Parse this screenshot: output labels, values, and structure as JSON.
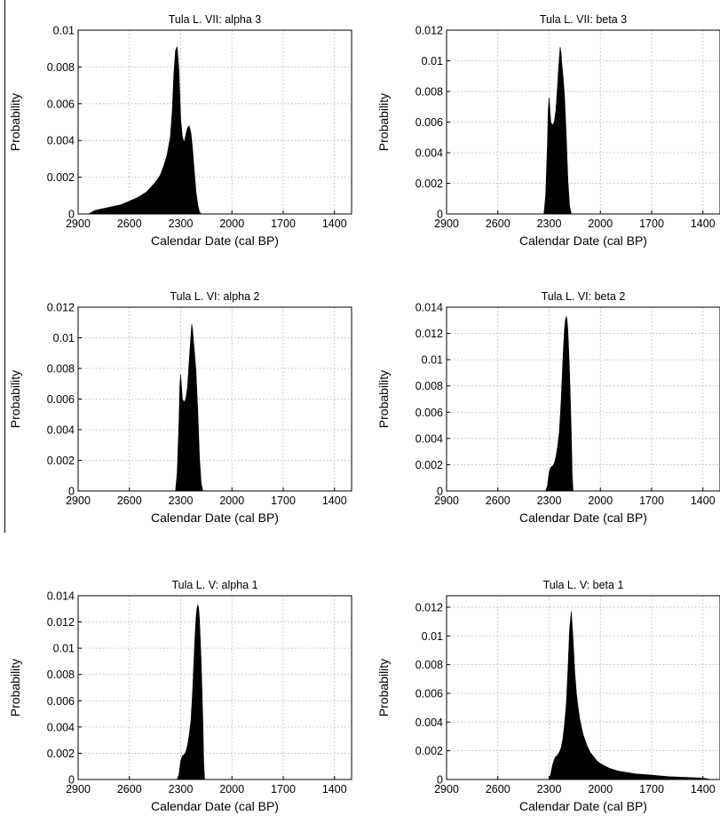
{
  "figure": {
    "ink_color": "#000000",
    "grid_color": "#aaaaaa",
    "background": "#ffffff"
  },
  "chart_data": [
    {
      "type": "area",
      "title": "Tula L. VII: alpha 3",
      "xlabel": "Calendar Date (cal BP)",
      "ylabel": "Probability",
      "xlim": [
        2900,
        1300
      ],
      "x_reversed": true,
      "ylim": [
        0,
        0.01
      ],
      "xticks": [
        2900,
        2600,
        2300,
        2000,
        1700,
        1400
      ],
      "xtick_labels": [
        "2900",
        "2600",
        "2300",
        "2000",
        "1700",
        "1400"
      ],
      "yticks": [
        0,
        0.002,
        0.004,
        0.006,
        0.008,
        0.01
      ],
      "ytick_labels": [
        "0",
        "0.002",
        "0.004",
        "0.006",
        "0.008",
        "0.01"
      ],
      "grid": true,
      "x": [
        2840,
        2800,
        2750,
        2700,
        2650,
        2600,
        2550,
        2500,
        2450,
        2420,
        2400,
        2380,
        2360,
        2350,
        2340,
        2330,
        2320,
        2310,
        2300,
        2290,
        2280,
        2270,
        2260,
        2250,
        2240,
        2230,
        2220,
        2210,
        2200,
        2190,
        2180
      ],
      "y": [
        0,
        0.0002,
        0.0003,
        0.0004,
        0.0005,
        0.0007,
        0.0009,
        0.0012,
        0.0017,
        0.0021,
        0.0026,
        0.0032,
        0.0042,
        0.0055,
        0.0076,
        0.0089,
        0.0091,
        0.0078,
        0.0052,
        0.0042,
        0.0039,
        0.0043,
        0.0047,
        0.0048,
        0.0044,
        0.0035,
        0.0023,
        0.0012,
        0.0005,
        0.0001,
        0
      ]
    },
    {
      "type": "area",
      "title": "Tula L. VII: beta 3",
      "xlabel": "Calendar Date (cal BP)",
      "ylabel": "Probability",
      "xlim": [
        2900,
        1300
      ],
      "x_reversed": true,
      "ylim": [
        0,
        0.012
      ],
      "xticks": [
        2900,
        2600,
        2300,
        2000,
        1700,
        1400
      ],
      "xtick_labels": [
        "2900",
        "2600",
        "2300",
        "2000",
        "1700",
        "1400"
      ],
      "yticks": [
        0,
        0.002,
        0.004,
        0.006,
        0.008,
        0.01,
        0.012
      ],
      "ytick_labels": [
        "0",
        "0.002",
        "0.004",
        "0.006",
        "0.008",
        "0.01",
        "0.012"
      ],
      "grid": true,
      "x": [
        2330,
        2320,
        2310,
        2305,
        2300,
        2295,
        2290,
        2280,
        2270,
        2260,
        2250,
        2240,
        2235,
        2230,
        2225,
        2220,
        2210,
        2200,
        2190,
        2180,
        2170
      ],
      "y": [
        0,
        0.0012,
        0.0045,
        0.0068,
        0.0076,
        0.0068,
        0.006,
        0.0058,
        0.006,
        0.0068,
        0.0085,
        0.0102,
        0.0109,
        0.0105,
        0.0098,
        0.0092,
        0.0078,
        0.0052,
        0.0022,
        0.0005,
        0
      ]
    },
    {
      "type": "area",
      "title": "Tula L. VI: alpha 2",
      "xlabel": "Calendar Date (cal BP)",
      "ylabel": "Probability",
      "xlim": [
        2900,
        1300
      ],
      "x_reversed": true,
      "ylim": [
        0,
        0.012
      ],
      "xticks": [
        2900,
        2600,
        2300,
        2000,
        1700,
        1400
      ],
      "xtick_labels": [
        "2900",
        "2600",
        "2300",
        "2000",
        "1700",
        "1400"
      ],
      "yticks": [
        0,
        0.002,
        0.004,
        0.006,
        0.008,
        0.01,
        0.012
      ],
      "ytick_labels": [
        "0",
        "0.002",
        "0.004",
        "0.006",
        "0.008",
        "0.01",
        "0.012"
      ],
      "grid": true,
      "x": [
        2330,
        2320,
        2310,
        2305,
        2300,
        2295,
        2290,
        2280,
        2270,
        2260,
        2250,
        2240,
        2235,
        2230,
        2225,
        2220,
        2210,
        2200,
        2190,
        2180,
        2170
      ],
      "y": [
        0,
        0.0012,
        0.0045,
        0.0068,
        0.0076,
        0.0068,
        0.006,
        0.0058,
        0.006,
        0.0068,
        0.0085,
        0.0102,
        0.0109,
        0.0105,
        0.0098,
        0.0092,
        0.0078,
        0.0052,
        0.0022,
        0.0005,
        0
      ]
    },
    {
      "type": "area",
      "title": "Tula L. VI: beta 2",
      "xlabel": "Calendar Date (cal BP)",
      "ylabel": "Probability",
      "xlim": [
        2900,
        1300
      ],
      "x_reversed": true,
      "ylim": [
        0,
        0.014
      ],
      "xticks": [
        2900,
        2600,
        2300,
        2000,
        1700,
        1400
      ],
      "xtick_labels": [
        "2900",
        "2600",
        "2300",
        "2000",
        "1700",
        "1400"
      ],
      "yticks": [
        0,
        0.002,
        0.004,
        0.006,
        0.008,
        0.01,
        0.012,
        0.014
      ],
      "ytick_labels": [
        "0",
        "0.002",
        "0.004",
        "0.006",
        "0.008",
        "0.01",
        "0.012",
        "0.014"
      ],
      "grid": true,
      "x": [
        2320,
        2310,
        2300,
        2290,
        2280,
        2270,
        2260,
        2250,
        2240,
        2230,
        2220,
        2215,
        2210,
        2205,
        2200,
        2195,
        2190,
        2180,
        2170,
        2165,
        2160
      ],
      "y": [
        0,
        0.0004,
        0.0014,
        0.0018,
        0.0019,
        0.0021,
        0.0026,
        0.0034,
        0.0045,
        0.0068,
        0.0098,
        0.0112,
        0.0123,
        0.013,
        0.0133,
        0.0131,
        0.0122,
        0.009,
        0.0045,
        0.0012,
        0
      ]
    },
    {
      "type": "area",
      "title": "Tula L. V: alpha 1",
      "xlabel": "Calendar Date (cal BP)",
      "ylabel": "Probability",
      "xlim": [
        2900,
        1300
      ],
      "x_reversed": true,
      "ylim": [
        0,
        0.014
      ],
      "xticks": [
        2900,
        2600,
        2300,
        2000,
        1700,
        1400
      ],
      "xtick_labels": [
        "2900",
        "2600",
        "2300",
        "2000",
        "1700",
        "1400"
      ],
      "yticks": [
        0,
        0.002,
        0.004,
        0.006,
        0.008,
        0.01,
        0.012,
        0.014
      ],
      "ytick_labels": [
        "0",
        "0.002",
        "0.004",
        "0.006",
        "0.008",
        "0.01",
        "0.012",
        "0.014"
      ],
      "grid": true,
      "x": [
        2320,
        2310,
        2300,
        2290,
        2280,
        2270,
        2260,
        2250,
        2240,
        2230,
        2220,
        2215,
        2210,
        2205,
        2200,
        2195,
        2190,
        2180,
        2170,
        2165,
        2160
      ],
      "y": [
        0,
        0.0004,
        0.0014,
        0.0018,
        0.0019,
        0.0021,
        0.0026,
        0.0034,
        0.0045,
        0.0068,
        0.0098,
        0.0112,
        0.0123,
        0.013,
        0.0133,
        0.0131,
        0.0122,
        0.009,
        0.0045,
        0.0012,
        0
      ]
    },
    {
      "type": "area",
      "title": "Tula L. V: beta 1",
      "xlabel": "Calendar Date (cal BP)",
      "ylabel": "Probability",
      "xlim": [
        2900,
        1300
      ],
      "x_reversed": true,
      "ylim": [
        0,
        0.0128
      ],
      "xticks": [
        2900,
        2600,
        2300,
        2000,
        1700,
        1400
      ],
      "xtick_labels": [
        "2900",
        "2600",
        "2300",
        "2000",
        "1700",
        "1400"
      ],
      "yticks": [
        0,
        0.002,
        0.004,
        0.006,
        0.008,
        0.01,
        0.012
      ],
      "ytick_labels": [
        "0",
        "0.002",
        "0.004",
        "0.006",
        "0.008",
        "0.01",
        "0.012"
      ],
      "grid": true,
      "x": [
        2300,
        2290,
        2280,
        2270,
        2260,
        2250,
        2240,
        2230,
        2220,
        2210,
        2200,
        2190,
        2180,
        2170,
        2160,
        2150,
        2140,
        2130,
        2120,
        2110,
        2100,
        2080,
        2060,
        2040,
        2020,
        2000,
        1950,
        1900,
        1850,
        1800,
        1700,
        1600,
        1500,
        1400,
        1350
      ],
      "y": [
        0,
        0.0004,
        0.001,
        0.0014,
        0.0016,
        0.0017,
        0.0019,
        0.0022,
        0.0028,
        0.0038,
        0.0052,
        0.0076,
        0.0105,
        0.0117,
        0.0098,
        0.0075,
        0.006,
        0.005,
        0.0042,
        0.0036,
        0.0031,
        0.0024,
        0.0019,
        0.0016,
        0.0013,
        0.0011,
        0.0008,
        0.0006,
        0.0005,
        0.0004,
        0.0003,
        0.0002,
        0.00015,
        0.0001,
        0
      ]
    }
  ]
}
